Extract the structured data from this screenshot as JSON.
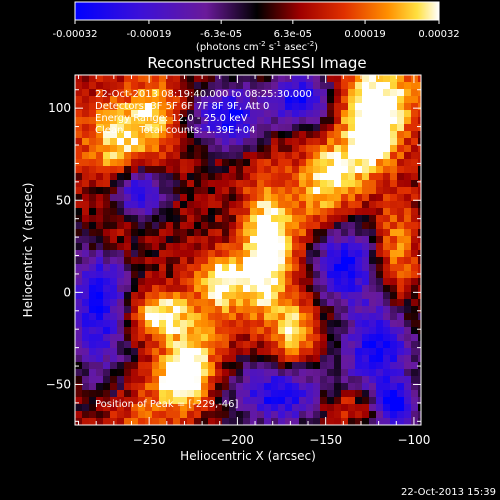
{
  "colorbar": {
    "ticks": [
      "-0.00032",
      "-0.00019",
      "-6.3e-05",
      "6.3e-05",
      "0.00019",
      "0.00032"
    ],
    "units_main": "(photons cm",
    "units_sup1": "-2",
    "units_mid": " s",
    "units_sup2": "-1",
    "units_end": " asec",
    "units_sup3": "-2",
    "units_close": ")",
    "min": -0.00032,
    "max": 0.00032
  },
  "chart_data": {
    "type": "heatmap",
    "title": "Reconstructed RHESSI Image",
    "xlabel": "Heliocentric X (arcsec)",
    "ylabel": "Heliocentric Y (arcsec)",
    "xlim": [
      -292,
      -96
    ],
    "ylim": [
      -72,
      118
    ],
    "xticks": [
      -250,
      -200,
      -150,
      -100
    ],
    "yticks": [
      -50,
      0,
      50,
      100
    ],
    "info_lines": [
      "22-Oct-2013 08:19:40.000 to 08:25:30.000",
      "Detectors: 3F 5F 6F 7F 8F 9F, Att 0",
      "Energy Range: 12.0 - 25.0 keV",
      "Clean     Total counts: 1.39E+04"
    ],
    "peak_label": "Position of Peak = [-229,-46]",
    "peak": [
      -229,
      -46
    ],
    "bright_sources": [
      {
        "x": -124,
        "y": 98,
        "intensity": 1.0,
        "sx": 12,
        "sy": 20
      },
      {
        "x": -229,
        "y": -46,
        "intensity": 1.0,
        "sx": 10,
        "sy": 12
      },
      {
        "x": -244,
        "y": -12,
        "intensity": 0.9,
        "sx": 14,
        "sy": 9
      },
      {
        "x": -184,
        "y": 28,
        "intensity": 0.85,
        "sx": 9,
        "sy": 26
      },
      {
        "x": -210,
        "y": 8,
        "intensity": 0.8,
        "sx": 10,
        "sy": 10
      },
      {
        "x": -168,
        "y": -22,
        "intensity": 0.75,
        "sx": 10,
        "sy": 14
      },
      {
        "x": -268,
        "y": 82,
        "intensity": 0.75,
        "sx": 16,
        "sy": 18
      },
      {
        "x": -245,
        "y": 100,
        "intensity": 0.6,
        "sx": 10,
        "sy": 14
      },
      {
        "x": -150,
        "y": 64,
        "intensity": 0.6,
        "sx": 12,
        "sy": 12
      },
      {
        "x": -110,
        "y": 20,
        "intensity": 0.55,
        "sx": 8,
        "sy": 22
      },
      {
        "x": -275,
        "y": 30,
        "intensity": 0.5,
        "sx": 10,
        "sy": 10
      },
      {
        "x": -140,
        "y": -60,
        "intensity": 0.5,
        "sx": 14,
        "sy": 8
      }
    ],
    "dark_regions": [
      {
        "x": -278,
        "y": -5,
        "sx": 12,
        "sy": 28
      },
      {
        "x": -175,
        "y": -55,
        "sx": 20,
        "sy": 12
      },
      {
        "x": -120,
        "y": -30,
        "sx": 14,
        "sy": 20
      },
      {
        "x": -205,
        "y": 95,
        "sx": 14,
        "sy": 12
      },
      {
        "x": -140,
        "y": 15,
        "sx": 12,
        "sy": 14
      },
      {
        "x": -165,
        "y": 105,
        "sx": 12,
        "sy": 10
      },
      {
        "x": -255,
        "y": 55,
        "sx": 10,
        "sy": 10
      },
      {
        "x": -110,
        "y": -62,
        "sx": 8,
        "sy": 8
      }
    ],
    "colormap": "rhessi-blue-purple-red-yellow-white"
  },
  "footer": {
    "timestamp": "22-Oct-2013 15:39"
  }
}
